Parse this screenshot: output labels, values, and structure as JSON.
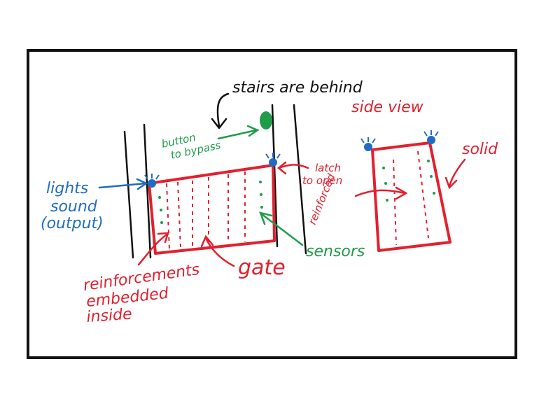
{
  "colors": {
    "black": "#111111",
    "red": "#e2202e",
    "blue": "#1f6cc4",
    "green": "#1e9c4a"
  },
  "labels": {
    "stairs": "stairs are behind",
    "side_view": "side view",
    "button_line1": "button",
    "button_line2": "to bypass",
    "latch_line1": "latch",
    "latch_line2": "to open",
    "lights_line1": "lights",
    "lights_line2": "sound",
    "lights_line3": "(output)",
    "solid": "solid",
    "reinforced": "reinforced",
    "sensors": "sensors",
    "gate": "gate",
    "reinf_line1": "reinforcements",
    "reinf_line2": "embedded",
    "reinf_line3": "inside"
  }
}
